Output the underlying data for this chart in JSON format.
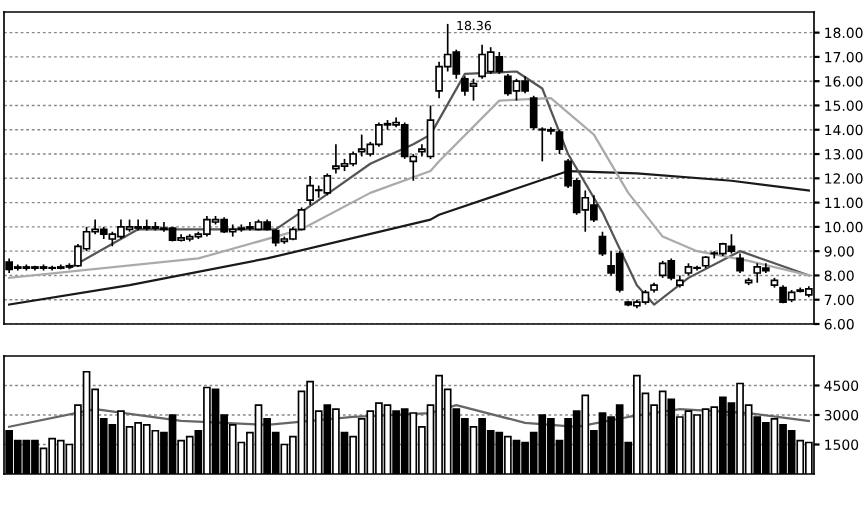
{
  "chart_data": [
    {
      "type": "candlestick",
      "categories": [
        null,
        null,
        null,
        null,
        null,
        null,
        null,
        null,
        null,
        null,
        null,
        null,
        null,
        null,
        null,
        null,
        null,
        null,
        null,
        null,
        null,
        null,
        null,
        null,
        null,
        null,
        null,
        null,
        null,
        null,
        null,
        null,
        null,
        null,
        null,
        null,
        null,
        null,
        null,
        null,
        null,
        null,
        null,
        null,
        null,
        null,
        null,
        null,
        null,
        null,
        null,
        null,
        null,
        null,
        null,
        null,
        null,
        null,
        null,
        null,
        null,
        null,
        null,
        null,
        null,
        null,
        null,
        null,
        null,
        null,
        null,
        null,
        null,
        null,
        null,
        null,
        null,
        null,
        null,
        null,
        null,
        null,
        null,
        null,
        null,
        null,
        null,
        null,
        null,
        null,
        null,
        null,
        null,
        null
      ],
      "ohlc": [
        [
          8.55,
          8.7,
          8.1,
          8.25
        ],
        [
          8.3,
          8.45,
          8.2,
          8.35
        ],
        [
          8.35,
          8.45,
          8.2,
          8.3
        ],
        [
          8.3,
          8.4,
          8.2,
          8.35
        ],
        [
          8.35,
          8.45,
          8.2,
          8.3
        ],
        [
          8.3,
          8.4,
          8.2,
          8.3
        ],
        [
          8.3,
          8.45,
          8.25,
          8.35
        ],
        [
          8.35,
          8.5,
          8.3,
          8.4
        ],
        [
          8.4,
          9.3,
          8.35,
          9.2
        ],
        [
          9.1,
          10.0,
          9.0,
          9.8
        ],
        [
          9.8,
          10.3,
          9.7,
          9.9
        ],
        [
          9.9,
          10.0,
          9.5,
          9.7
        ],
        [
          9.5,
          9.8,
          9.2,
          9.7
        ],
        [
          9.6,
          10.3,
          9.5,
          10.0
        ],
        [
          9.9,
          10.3,
          9.8,
          10.0
        ],
        [
          10.0,
          10.3,
          9.85,
          9.95
        ],
        [
          9.95,
          10.3,
          9.85,
          10.0
        ],
        [
          10.0,
          10.2,
          9.85,
          9.95
        ],
        [
          9.95,
          10.2,
          9.8,
          9.9
        ],
        [
          9.95,
          10.0,
          9.4,
          9.45
        ],
        [
          9.45,
          9.7,
          9.4,
          9.55
        ],
        [
          9.5,
          9.7,
          9.4,
          9.6
        ],
        [
          9.6,
          9.8,
          9.5,
          9.7
        ],
        [
          9.7,
          10.45,
          9.6,
          10.3
        ],
        [
          10.2,
          10.45,
          10.1,
          10.3
        ],
        [
          10.3,
          10.4,
          9.75,
          9.8
        ],
        [
          9.8,
          10.1,
          9.6,
          9.9
        ],
        [
          9.9,
          10.1,
          9.8,
          9.95
        ],
        [
          9.95,
          10.2,
          9.85,
          10.0
        ],
        [
          9.9,
          10.3,
          9.85,
          10.2
        ],
        [
          10.2,
          10.3,
          9.85,
          9.9
        ],
        [
          9.85,
          9.9,
          9.2,
          9.35
        ],
        [
          9.4,
          9.6,
          9.3,
          9.5
        ],
        [
          9.5,
          10.0,
          9.45,
          9.9
        ],
        [
          9.9,
          10.8,
          9.85,
          10.7
        ],
        [
          11.1,
          12.1,
          10.9,
          11.7
        ],
        [
          11.5,
          11.7,
          11.2,
          11.5
        ],
        [
          11.4,
          12.2,
          11.3,
          12.1
        ],
        [
          12.4,
          13.4,
          12.2,
          12.5
        ],
        [
          12.5,
          12.8,
          12.3,
          12.6
        ],
        [
          12.6,
          13.1,
          12.5,
          13.0
        ],
        [
          13.1,
          13.8,
          12.9,
          13.2
        ],
        [
          13.0,
          13.5,
          12.9,
          13.4
        ],
        [
          13.4,
          14.3,
          13.3,
          14.2
        ],
        [
          14.25,
          14.4,
          14.0,
          14.2
        ],
        [
          14.2,
          14.5,
          14.1,
          14.3
        ],
        [
          14.2,
          14.3,
          12.8,
          12.9
        ],
        [
          12.7,
          13.0,
          11.9,
          12.9
        ],
        [
          13.1,
          13.4,
          12.9,
          13.2
        ],
        [
          12.9,
          15.0,
          12.8,
          14.4
        ],
        [
          15.6,
          16.8,
          15.3,
          16.6
        ],
        [
          16.6,
          18.36,
          16.4,
          17.1
        ],
        [
          17.2,
          17.3,
          16.1,
          16.3
        ],
        [
          16.1,
          16.2,
          15.4,
          15.6
        ],
        [
          15.8,
          16.1,
          15.2,
          15.9
        ],
        [
          16.2,
          17.5,
          16.1,
          17.1
        ],
        [
          16.4,
          17.4,
          16.3,
          17.2
        ],
        [
          17.0,
          17.2,
          16.3,
          16.4
        ],
        [
          16.2,
          16.3,
          15.4,
          15.5
        ],
        [
          15.6,
          16.1,
          15.2,
          16.0
        ],
        [
          16.0,
          16.2,
          15.5,
          15.6
        ],
        [
          15.3,
          15.4,
          14.0,
          14.1
        ],
        [
          14.0,
          14.1,
          12.7,
          14.0
        ],
        [
          14.0,
          14.1,
          13.8,
          13.95
        ],
        [
          13.9,
          14.0,
          13.0,
          13.2
        ],
        [
          12.7,
          12.8,
          11.6,
          11.7
        ],
        [
          11.9,
          12.0,
          10.5,
          10.6
        ],
        [
          10.7,
          11.5,
          9.8,
          11.2
        ],
        [
          10.9,
          11.3,
          10.2,
          10.3
        ],
        [
          9.6,
          9.8,
          8.8,
          8.9
        ],
        [
          8.4,
          9.0,
          8.0,
          8.1
        ],
        [
          8.9,
          9.0,
          7.3,
          7.4
        ],
        [
          6.9,
          6.95,
          6.73,
          6.8
        ],
        [
          6.75,
          7.0,
          6.65,
          6.9
        ],
        [
          6.9,
          7.4,
          6.8,
          7.3
        ],
        [
          7.4,
          7.7,
          7.3,
          7.6
        ],
        [
          8.0,
          8.6,
          7.9,
          8.5
        ],
        [
          8.6,
          8.7,
          7.8,
          7.9
        ],
        [
          7.6,
          8.0,
          7.5,
          7.8
        ],
        [
          8.1,
          8.5,
          8.0,
          8.35
        ],
        [
          8.3,
          8.4,
          8.2,
          8.3
        ],
        [
          8.4,
          8.8,
          8.3,
          8.75
        ],
        [
          8.9,
          9.0,
          8.7,
          8.9
        ],
        [
          8.9,
          9.35,
          8.8,
          9.3
        ],
        [
          9.2,
          9.7,
          8.9,
          9.0
        ],
        [
          8.7,
          8.9,
          8.1,
          8.2
        ],
        [
          7.7,
          7.9,
          7.6,
          7.8
        ],
        [
          8.1,
          8.5,
          7.7,
          8.35
        ],
        [
          8.3,
          8.5,
          8.1,
          8.2
        ],
        [
          7.6,
          7.9,
          7.5,
          7.8
        ],
        [
          7.5,
          7.6,
          6.85,
          6.9
        ],
        [
          7.0,
          7.4,
          6.9,
          7.3
        ],
        [
          7.35,
          7.5,
          7.3,
          7.4
        ],
        [
          7.2,
          7.55,
          7.1,
          7.45
        ]
      ],
      "series": [
        {
          "type": "line",
          "color": "#1a1a1a",
          "values": [
            6.8,
            null,
            null,
            null,
            null,
            null,
            null,
            null,
            null,
            null,
            null,
            null,
            null,
            null,
            7.6,
            null,
            null,
            null,
            null,
            null,
            null,
            null,
            null,
            null,
            null,
            null,
            null,
            null,
            null,
            null,
            8.7,
            null,
            null,
            null,
            null,
            null,
            null,
            null,
            null,
            null,
            null,
            null,
            null,
            null,
            null,
            null,
            null,
            null,
            null,
            10.3,
            10.5,
            null,
            null,
            null,
            null,
            null,
            null,
            null,
            null,
            null,
            null,
            null,
            null,
            null,
            null,
            12.3,
            null,
            null,
            null,
            null,
            null,
            null,
            null,
            12.2,
            null,
            null,
            null,
            null,
            null,
            null,
            null,
            null,
            null,
            null,
            11.9,
            null,
            null,
            null,
            null,
            null,
            null,
            null,
            null,
            11.5
          ]
        },
        {
          "type": "line",
          "color": "#555555",
          "values": [
            null,
            null,
            null,
            null,
            null,
            null,
            null,
            8.3,
            null,
            null,
            null,
            null,
            null,
            null,
            null,
            9.9,
            null,
            null,
            null,
            null,
            null,
            null,
            9.9,
            null,
            null,
            null,
            null,
            null,
            null,
            null,
            null,
            9.9,
            null,
            null,
            null,
            null,
            11.1,
            null,
            null,
            null,
            null,
            null,
            12.6,
            null,
            null,
            null,
            null,
            13.4,
            null,
            13.8,
            null,
            null,
            null,
            16.3,
            null,
            null,
            null,
            null,
            null,
            16.4,
            null,
            null,
            15.7,
            null,
            null,
            13.0,
            null,
            null,
            null,
            10.6,
            null,
            null,
            null,
            7.6,
            null,
            6.8,
            null,
            null,
            null,
            7.9,
            null,
            null,
            null,
            null,
            null,
            9.0,
            null,
            null,
            null,
            null,
            null,
            null,
            null,
            8.0
          ]
        },
        {
          "type": "line",
          "color": "#aaaaaa",
          "values": [
            7.9,
            null,
            null,
            null,
            null,
            null,
            null,
            null,
            null,
            null,
            null,
            null,
            null,
            null,
            null,
            null,
            null,
            null,
            null,
            null,
            null,
            null,
            8.7,
            null,
            null,
            null,
            null,
            null,
            null,
            null,
            null,
            null,
            null,
            null,
            9.9,
            null,
            null,
            null,
            null,
            null,
            null,
            null,
            11.4,
            null,
            null,
            null,
            null,
            null,
            null,
            12.3,
            12.7,
            null,
            null,
            null,
            null,
            null,
            null,
            15.2,
            null,
            null,
            null,
            null,
            null,
            15.3,
            null,
            null,
            null,
            null,
            13.8,
            null,
            null,
            null,
            11.4,
            null,
            null,
            null,
            9.6,
            null,
            null,
            null,
            9.0,
            null,
            null,
            null,
            null,
            null,
            8.6,
            null,
            null,
            null,
            null,
            null,
            null,
            8.0
          ]
        }
      ],
      "ylim": [
        6.0,
        18.85
      ],
      "yticks": [
        {
          "value": 6,
          "label": "6.00"
        },
        {
          "value": 7,
          "label": "7.00"
        },
        {
          "value": 8,
          "label": "8.00"
        },
        {
          "value": 9,
          "label": "9.00"
        },
        {
          "value": 10,
          "label": "10.00"
        },
        {
          "value": 11,
          "label": "11.00"
        },
        {
          "value": 12,
          "label": "12.00"
        },
        {
          "value": 13,
          "label": "13.00"
        },
        {
          "value": 14,
          "label": "14.00"
        },
        {
          "value": 15,
          "label": "15.00"
        },
        {
          "value": 16,
          "label": "16.00"
        },
        {
          "value": 17,
          "label": "17.00"
        },
        {
          "value": 18,
          "label": "18.00"
        }
      ],
      "annotations": [
        "18.36"
      ],
      "grid": "y",
      "tick_labels": "y"
    },
    {
      "type": "bar",
      "categories": [
        null,
        null,
        null,
        null,
        null,
        null,
        null,
        null,
        null,
        null,
        null,
        null,
        null,
        null,
        null,
        null,
        null,
        null,
        null,
        null,
        null,
        null,
        null,
        null,
        null,
        null,
        null,
        null,
        null,
        null,
        null,
        null,
        null,
        null,
        null,
        null,
        null,
        null,
        null,
        null,
        null,
        null,
        null,
        null,
        null,
        null,
        null,
        null,
        null,
        null,
        null,
        null,
        null,
        null,
        null,
        null,
        null,
        null,
        null,
        null,
        null,
        null,
        null,
        null,
        null,
        null,
        null,
        null,
        null,
        null,
        null,
        null,
        null,
        null,
        null,
        null,
        null,
        null,
        null,
        null,
        null,
        null,
        null,
        null,
        null,
        null,
        null,
        null,
        null,
        null,
        null,
        null,
        null,
        null
      ],
      "values": [
        2200,
        1700,
        1700,
        1700,
        1300,
        1800,
        1700,
        1500,
        3500,
        5200,
        4300,
        2800,
        2500,
        3200,
        2400,
        2600,
        2500,
        2200,
        2100,
        3000,
        1700,
        1900,
        2200,
        4400,
        4300,
        3000,
        2500,
        1600,
        2100,
        3500,
        2800,
        2100,
        1500,
        1900,
        4200,
        4700,
        3200,
        3500,
        3300,
        2100,
        1900,
        2800,
        3200,
        3600,
        3500,
        3200,
        3300,
        3100,
        2400,
        3500,
        5000,
        4300,
        3300,
        2800,
        2400,
        2800,
        2200,
        2100,
        1900,
        1700,
        1600,
        2100,
        3000,
        2800,
        1700,
        2800,
        3200,
        4000,
        2200,
        3100,
        2900,
        3500,
        1600,
        5000,
        4100,
        3500,
        4200,
        3800,
        2900,
        3200,
        3000,
        3300,
        3400,
        3900,
        3600,
        4600,
        3500,
        2900,
        2600,
        2800,
        2500,
        2200,
        1700,
        1600
      ],
      "colors": [
        "#000000",
        "#000000",
        "#000000",
        "#000000",
        "#ffffff",
        "#ffffff",
        "#ffffff",
        "#ffffff",
        "#ffffff",
        "#ffffff",
        "#ffffff",
        "#000000",
        "#000000",
        "#ffffff",
        "#ffffff",
        "#ffffff",
        "#ffffff",
        "#ffffff",
        "#000000",
        "#000000",
        "#ffffff",
        "#ffffff",
        "#000000",
        "#ffffff",
        "#000000",
        "#000000",
        "#ffffff",
        "#ffffff",
        "#ffffff",
        "#ffffff",
        "#000000",
        "#000000",
        "#ffffff",
        "#ffffff",
        "#ffffff",
        "#ffffff",
        "#ffffff",
        "#000000",
        "#ffffff",
        "#000000",
        "#ffffff",
        "#ffffff",
        "#ffffff",
        "#ffffff",
        "#ffffff",
        "#000000",
        "#000000",
        "#ffffff",
        "#ffffff",
        "#ffffff",
        "#ffffff",
        "#ffffff",
        "#000000",
        "#000000",
        "#ffffff",
        "#000000",
        "#000000",
        "#000000",
        "#ffffff",
        "#000000",
        "#000000",
        "#000000",
        "#000000",
        "#000000",
        "#000000",
        "#000000",
        "#000000",
        "#ffffff",
        "#000000",
        "#000000",
        "#000000",
        "#000000",
        "#000000",
        "#ffffff",
        "#ffffff",
        "#ffffff",
        "#ffffff",
        "#000000",
        "#ffffff",
        "#ffffff",
        "#ffffff",
        "#ffffff",
        "#ffffff",
        "#000000",
        "#000000",
        "#ffffff",
        "#ffffff",
        "#000000",
        "#000000",
        "#ffffff",
        "#000000",
        "#000000",
        "#ffffff",
        "#ffffff"
      ],
      "series": [
        {
          "type": "line",
          "color": "#666666",
          "values": [
            2400,
            null,
            null,
            null,
            null,
            null,
            null,
            null,
            null,
            null,
            3300,
            null,
            null,
            null,
            null,
            null,
            null,
            null,
            null,
            null,
            2700,
            null,
            null,
            null,
            null,
            null,
            null,
            null,
            null,
            null,
            2500,
            null,
            null,
            null,
            null,
            null,
            null,
            null,
            null,
            null,
            2900,
            null,
            null,
            null,
            null,
            null,
            null,
            null,
            null,
            3100,
            null,
            null,
            3500,
            null,
            null,
            null,
            null,
            null,
            null,
            null,
            2600,
            null,
            null,
            null,
            null,
            null,
            2400,
            null,
            null,
            null,
            null,
            null,
            2900,
            null,
            null,
            null,
            null,
            null,
            3300,
            null,
            null,
            null,
            null,
            null,
            null,
            null,
            3100,
            null,
            null,
            null,
            null,
            null,
            null,
            2700
          ]
        }
      ],
      "ylim": [
        0,
        6000
      ],
      "yticks": [
        1500,
        3000,
        4500
      ],
      "grid": "y",
      "tick_labels": "y"
    }
  ]
}
